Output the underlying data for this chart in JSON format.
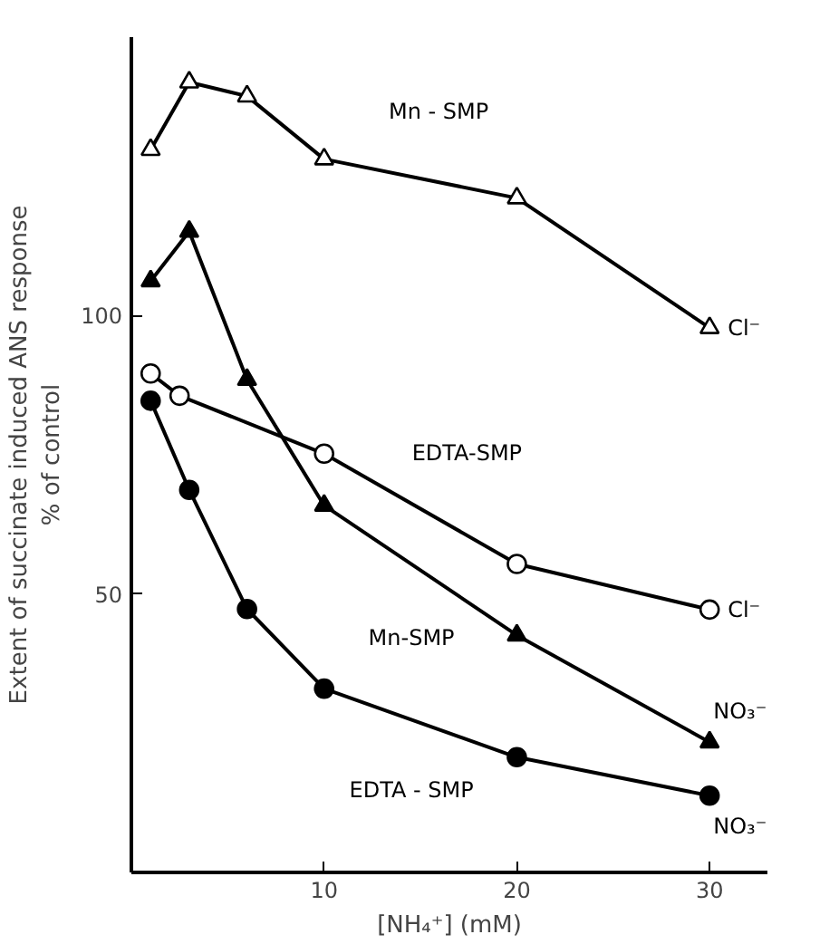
{
  "chart_data": {
    "type": "line",
    "xlabel": "[NH₄⁺] (mM)",
    "ylabel": "Extent of succinate induced ANS response\n% of control",
    "xlim": [
      0,
      33
    ],
    "ylim": [
      0,
      150
    ],
    "xticks": [
      10,
      20,
      30
    ],
    "yticks": [
      50,
      100
    ],
    "grid": false,
    "line_style": "solid",
    "series": [
      {
        "color": "#ffffff",
        "marker": "triangle",
        "x": [
          1,
          3,
          6,
          10,
          20,
          30
        ],
        "values": [
          129.8,
          141.9,
          139.4,
          128.1,
          121.1,
          97.8
        ]
      },
      {
        "color": "#000000",
        "marker": "triangle",
        "x": [
          1,
          3,
          6,
          10,
          20,
          30
        ],
        "values": [
          106.2,
          115.1,
          88.5,
          65.9,
          42.6,
          23.4
        ]
      },
      {
        "color": "#ffffff",
        "marker": "circle",
        "x": [
          1,
          2.5,
          10,
          20,
          30
        ],
        "values": [
          89.6,
          85.6,
          75.2,
          55.4,
          47.2
        ]
      },
      {
        "color": "#000000",
        "marker": "circle",
        "x": [
          1,
          3,
          6,
          10,
          20,
          30
        ],
        "values": [
          84.7,
          68.7,
          47.3,
          33.0,
          20.7,
          13.8
        ]
      }
    ],
    "annotations": [
      {
        "text": "Mn - SMP",
        "x": 15,
        "y": 124.6
      },
      {
        "text": "EDTA-SMP",
        "x": 16,
        "y": 63.3
      },
      {
        "text": "Mn-SMP",
        "x": 15,
        "y": 54.25
      },
      {
        "text": "EDTA - SMP",
        "x": 15,
        "y": 26.85
      },
      {
        "text": "Cl⁻",
        "x": 30,
        "y": 97.8
      },
      {
        "text": "Cl⁻",
        "x": 30,
        "y": 47.2
      },
      {
        "text": "NO₃⁻",
        "x": 30,
        "y": 23.4
      },
      {
        "text": "NO₃⁻",
        "x": 30,
        "y": 13.8
      }
    ]
  }
}
